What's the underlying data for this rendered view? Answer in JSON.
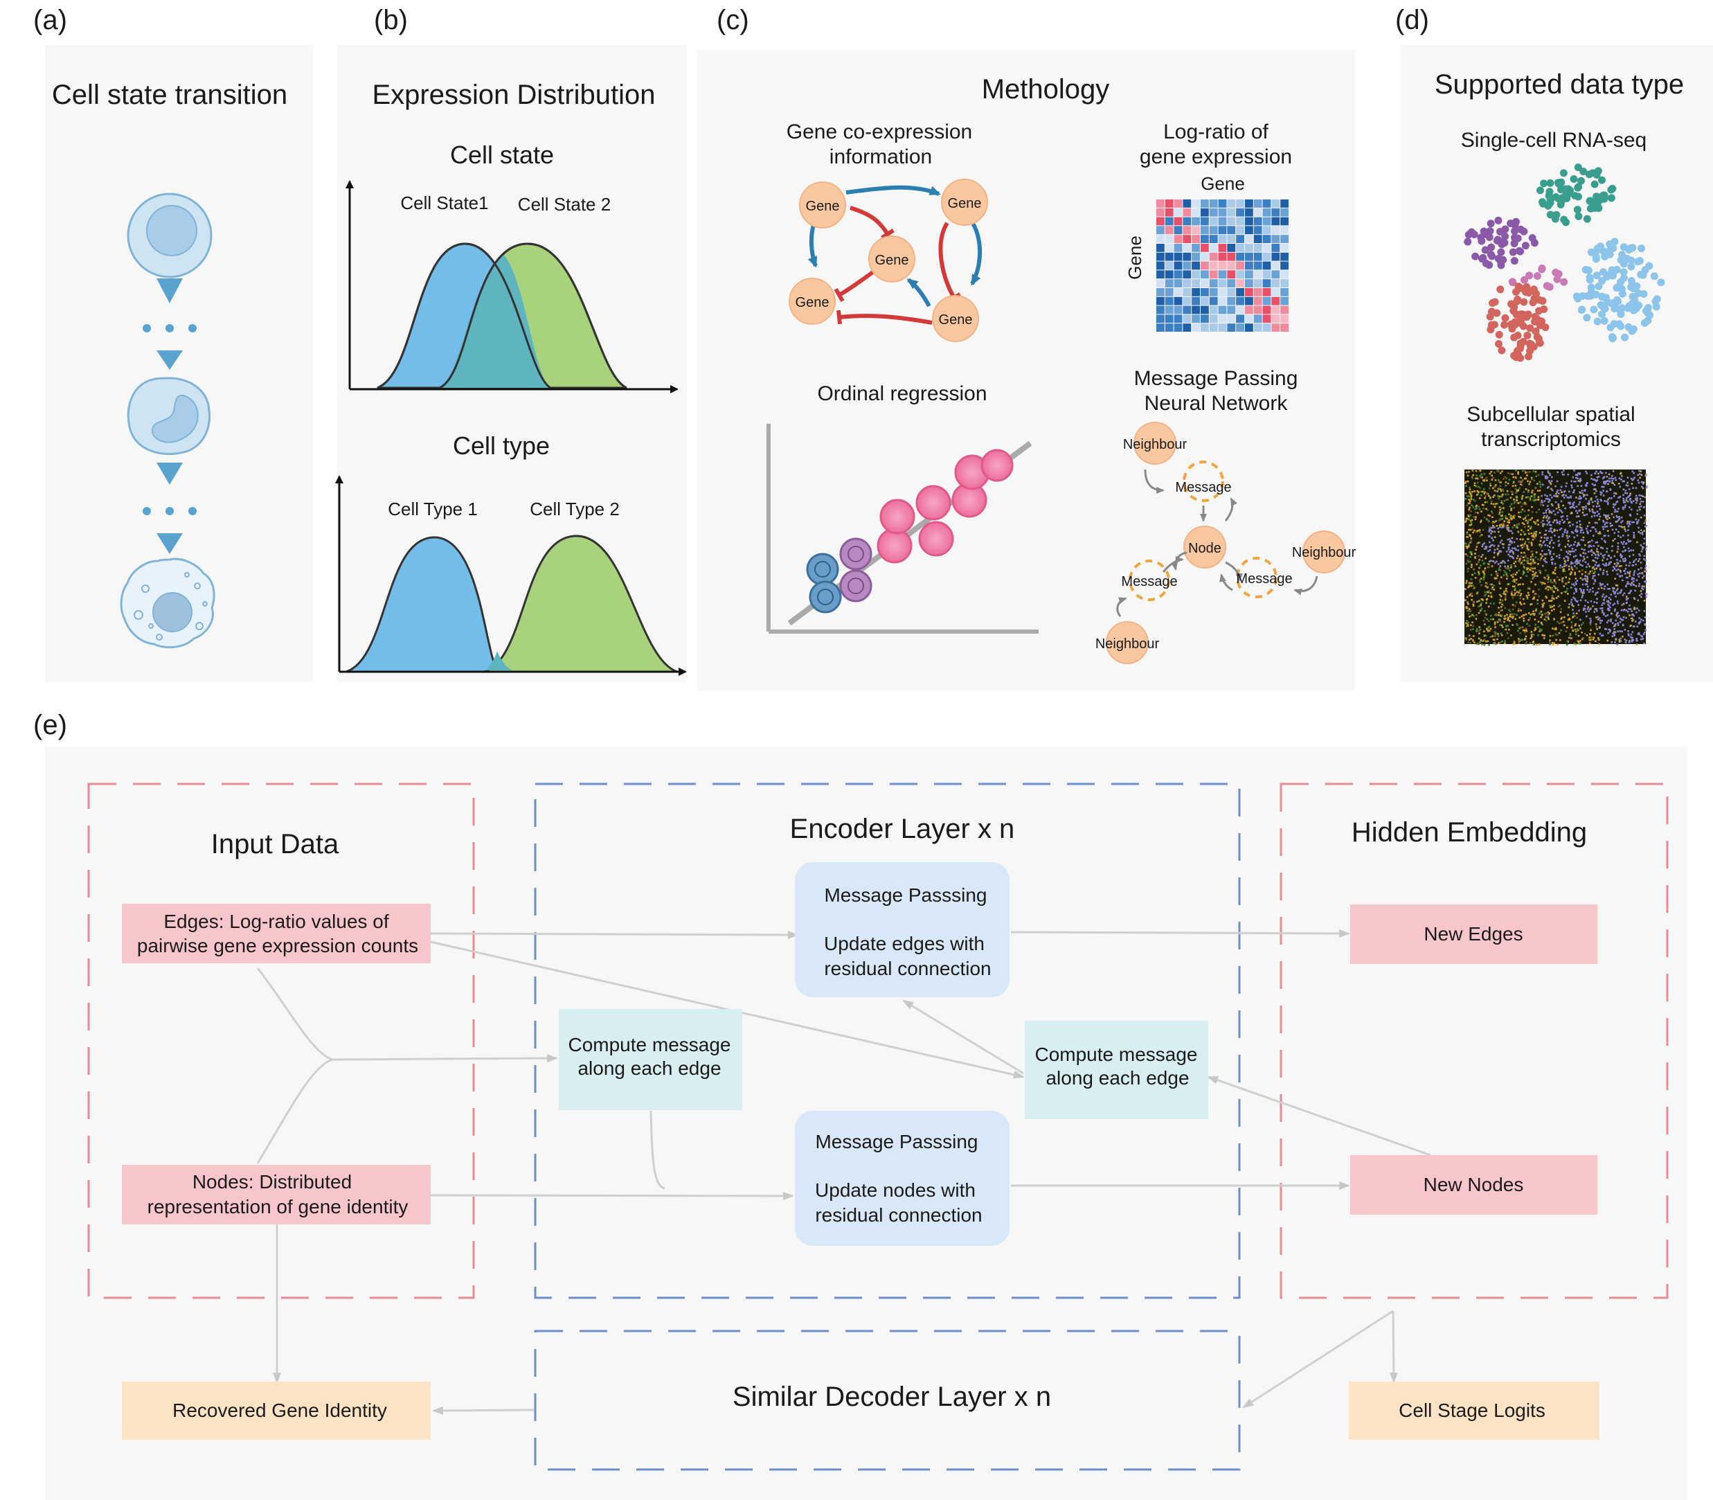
{
  "panels": {
    "a": {
      "letter": "(a)",
      "title": "Cell state transition"
    },
    "b": {
      "letter": "(b)",
      "title": "Expression Distribution",
      "state_title": "Cell state",
      "state1": "Cell State1",
      "state2": "Cell State 2",
      "type_title": "Cell type",
      "type1": "Cell Type 1",
      "type2": "Cell Type 2"
    },
    "c": {
      "letter": "(c)",
      "title": "Methology",
      "coexp_title_1": "Gene co-expression",
      "coexp_title_2": "information",
      "gene_label": "Gene",
      "logratio_title_1": "Log-ratio of",
      "logratio_title_2": "gene expression",
      "matrix_top": "Gene",
      "matrix_side": "Gene",
      "ordinal_title": "Ordinal regression",
      "mpnn_title_1": "Message Passing",
      "mpnn_title_2": "Neural Network",
      "neighbour": "Neighbour",
      "message": "Message",
      "node": "Node"
    },
    "d": {
      "letter": "(d)",
      "title": "Supported data type",
      "scrna": "Single-cell RNA-seq",
      "spatial_1": "Subcellular spatial",
      "spatial_2": "transcriptomics"
    },
    "e": {
      "letter": "(e)",
      "input_title": "Input Data",
      "edges_1": "Edges: Log-ratio values of",
      "edges_2": "pairwise gene expression counts",
      "nodes_1": "Nodes: Distributed",
      "nodes_2": "representation of gene identity",
      "encoder_title": "Encoder Layer x n",
      "mp_edges_1": "Message Passsing",
      "mp_edges_2": "Update edges with",
      "mp_edges_3": "residual connection",
      "mp_nodes_1": "Message Passsing",
      "mp_nodes_2": "Update nodes with",
      "mp_nodes_3": "residual connection",
      "cm_left_1": "Compute message",
      "cm_left_2": "along each edge",
      "cm_right_1": "Compute message",
      "cm_right_2": "along each edge",
      "hidden_title": "Hidden Embedding",
      "new_edges": "New Edges",
      "new_nodes": "New Nodes",
      "decoder_title": "Similar Decoder Layer x n",
      "recovered": "Recovered Gene Identity",
      "logits": "Cell Stage Logits"
    }
  },
  "colors": {
    "blue_curve": "#74bde8",
    "green_curve": "#a9d27c",
    "overlap": "#5eb5c0",
    "gene_node": "#f9c8a0",
    "arrow_blue": "#2a7fb0",
    "arrow_red": "#d23a3a",
    "pink_box": "#f7c6cb",
    "blue_box": "#d8e8f8",
    "teal_box": "#d8eef0",
    "peach_box": "#fde3c6",
    "dash_red": "#e88a93",
    "dash_blue": "#6d8ec9"
  }
}
